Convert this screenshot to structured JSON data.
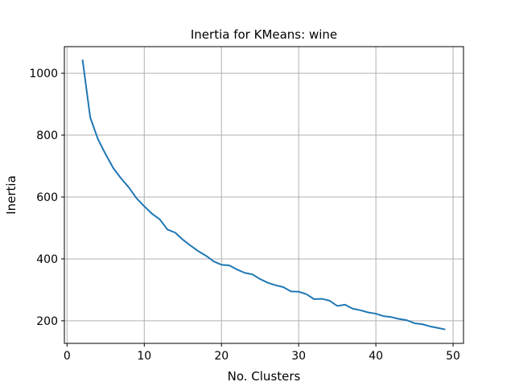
{
  "chart_data": {
    "type": "line",
    "title": "Inertia for KMeans: wine",
    "xlabel": "No. Clusters",
    "ylabel": "Inertia",
    "xlim": [
      -0.35,
      51.35
    ],
    "ylim": [
      127,
      1086
    ],
    "xticks": [
      0,
      10,
      20,
      30,
      40,
      50
    ],
    "yticks": [
      200,
      400,
      600,
      800,
      1000
    ],
    "grid": true,
    "line_color": "#1f77b4",
    "series": [
      {
        "x": [
          2,
          3,
          4,
          5,
          6,
          7,
          8,
          9,
          10,
          11,
          12,
          13,
          14,
          15,
          16,
          17,
          18,
          19,
          20,
          21,
          22,
          23,
          24,
          25,
          26,
          27,
          28,
          29,
          30,
          31,
          32,
          33,
          34,
          35,
          36,
          37,
          38,
          39,
          40,
          41,
          42,
          43,
          44,
          45,
          46,
          47,
          48,
          49
        ],
        "values": [
          1044,
          857,
          787,
          738,
          693,
          660,
          631,
          596,
          570,
          546,
          528,
          495,
          485,
          462,
          443,
          425,
          410,
          392,
          381,
          379,
          366,
          355,
          350,
          335,
          323,
          315,
          309,
          295,
          294,
          286,
          270,
          271,
          265,
          248,
          252,
          239,
          234,
          227,
          223,
          215,
          212,
          206,
          202,
          192,
          189,
          182,
          177,
          172
        ]
      }
    ]
  }
}
